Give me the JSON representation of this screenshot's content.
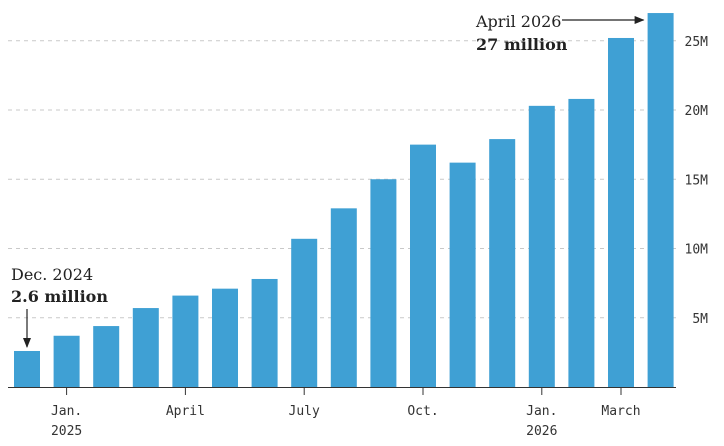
{
  "chart_data": {
    "type": "bar",
    "title": "",
    "xlabel": "",
    "ylabel": "",
    "ylim": [
      0,
      27500000
    ],
    "grid": true,
    "grid_style": "dashed horizontal",
    "y_axis_position": "right",
    "bar_color": "#3fa0d4",
    "categories": [
      "Dec. 2024",
      "Jan. 2025",
      "Feb. 2025",
      "Mar. 2025",
      "Apr. 2025",
      "May 2025",
      "Jun. 2025",
      "Jul. 2025",
      "Aug. 2025",
      "Sep. 2025",
      "Oct. 2025",
      "Nov. 2025",
      "Dec. 2025",
      "Jan. 2026",
      "Feb. 2026",
      "Mar. 2026",
      "Apr. 2026"
    ],
    "values": [
      2600000,
      3700000,
      4400000,
      5700000,
      6600000,
      7100000,
      7800000,
      10700000,
      12900000,
      15000000,
      17500000,
      16200000,
      17900000,
      20300000,
      20800000,
      25200000,
      27000000
    ],
    "y_ticks": [
      {
        "value": 5000000,
        "label": "5M"
      },
      {
        "value": 10000000,
        "label": "10M"
      },
      {
        "value": 15000000,
        "label": "15M"
      },
      {
        "value": 20000000,
        "label": "20M"
      },
      {
        "value": 25000000,
        "label": "25M"
      }
    ],
    "x_ticks": [
      {
        "index": 1,
        "line1": "Jan.",
        "line2": "2025"
      },
      {
        "index": 4,
        "line1": "April",
        "line2": ""
      },
      {
        "index": 7,
        "line1": "July",
        "line2": ""
      },
      {
        "index": 10,
        "line1": "Oct.",
        "line2": ""
      },
      {
        "index": 13,
        "line1": "Jan.",
        "line2": "2026"
      },
      {
        "index": 15,
        "line1": "March",
        "line2": ""
      }
    ],
    "annotations": [
      {
        "index": 0,
        "title": "Dec. 2024",
        "value": "2.6 million",
        "placement": "above, arrow down"
      },
      {
        "index": 16,
        "title": "April 2026",
        "value": "27 million",
        "placement": "left, arrow right"
      }
    ]
  }
}
